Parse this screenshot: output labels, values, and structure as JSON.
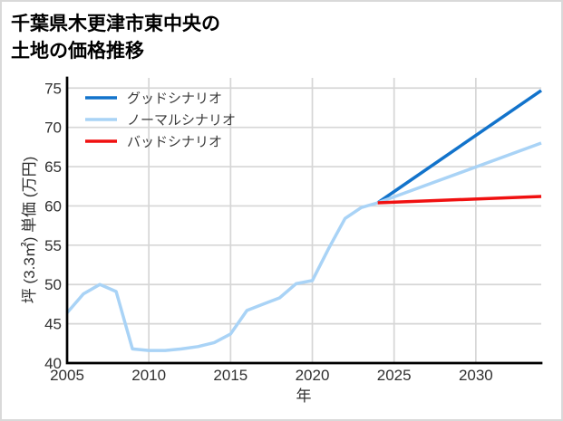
{
  "title": {
    "line1": "千葉県木更津市東中央の",
    "line2": "土地の価格推移"
  },
  "chart_data": {
    "type": "line",
    "title": "千葉県木更津市東中央の土地の価格推移",
    "xlabel": "年",
    "ylabel": "坪 (3.3㎡) 単価 (万円)",
    "xlim": [
      2005,
      2034
    ],
    "ylim": [
      40,
      76.3
    ],
    "xticks": [
      2005,
      2010,
      2015,
      2020,
      2025,
      2030
    ],
    "yticks": [
      40,
      45,
      50,
      55,
      60,
      65,
      70,
      75
    ],
    "grid": true,
    "legend_position": "upper-left",
    "styles": {
      "grid_color": "#d6d6d6",
      "spine_color": "#000000",
      "background": "#ffffff"
    },
    "series": [
      {
        "name": "グッドシナリオ",
        "color": "#1273cb",
        "x": [
          2024,
          2034
        ],
        "values": [
          60.4,
          74.7
        ]
      },
      {
        "name": "ノーマルシナリオ",
        "color": "#a9d3f6",
        "x": [
          2005,
          2006,
          2007,
          2008,
          2009,
          2010,
          2011,
          2012,
          2013,
          2014,
          2015,
          2016,
          2017,
          2018,
          2019,
          2020,
          2021,
          2022,
          2023,
          2024,
          2034
        ],
        "values": [
          46.4,
          48.8,
          50.0,
          49.1,
          41.8,
          41.6,
          41.6,
          41.8,
          42.1,
          42.6,
          43.7,
          46.7,
          47.5,
          48.3,
          50.1,
          50.5,
          54.6,
          58.4,
          59.8,
          60.4,
          68.0
        ]
      },
      {
        "name": "バッドシナリオ",
        "color": "#f01010",
        "x": [
          2024,
          2034
        ],
        "values": [
          60.4,
          61.2
        ]
      }
    ]
  }
}
